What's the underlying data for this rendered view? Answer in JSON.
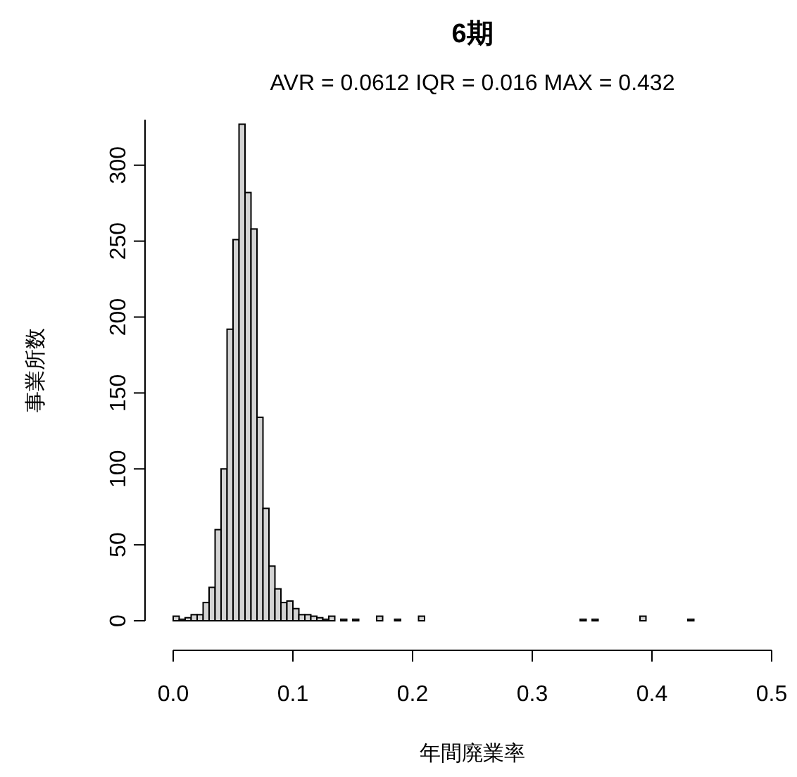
{
  "chart_data": {
    "type": "histogram",
    "title": "6期",
    "subtitle": "AVR = 0.0612  IQR = 0.016  MAX = 0.432",
    "xlabel": "年間廃業率",
    "ylabel": "事業所数",
    "bins": [
      0,
      0.005,
      0.01,
      0.015,
      0.02,
      0.025,
      0.03,
      0.035,
      0.04,
      0.045,
      0.05,
      0.055,
      0.06,
      0.065,
      0.07,
      0.075,
      0.08,
      0.085,
      0.09,
      0.095,
      0.1,
      0.105,
      0.11,
      0.115,
      0.12,
      0.125,
      0.13,
      0.135,
      0.14,
      0.145,
      0.15,
      0.155,
      0.16,
      0.165,
      0.17,
      0.175,
      0.18,
      0.185,
      0.19,
      0.195,
      0.2,
      0.205,
      0.21,
      0.215,
      0.22,
      0.225,
      0.23,
      0.235,
      0.24,
      0.245,
      0.25,
      0.255,
      0.26,
      0.265,
      0.27,
      0.275,
      0.28,
      0.285,
      0.29,
      0.295,
      0.3,
      0.305,
      0.31,
      0.315,
      0.32,
      0.325,
      0.33,
      0.335,
      0.34,
      0.345,
      0.35,
      0.355,
      0.36,
      0.365,
      0.37,
      0.375,
      0.38,
      0.385,
      0.39,
      0.395,
      0.4,
      0.405,
      0.41,
      0.415,
      0.42,
      0.425,
      0.43,
      0.435,
      0.44,
      0.445,
      0.45,
      0.455,
      0.46,
      0.465,
      0.47,
      0.475,
      0.48,
      0.485,
      0.49,
      0.495,
      0.5
    ],
    "values": [
      3,
      1,
      2,
      4,
      4,
      12,
      22,
      60,
      100,
      192,
      251,
      327,
      282,
      258,
      134,
      74,
      36,
      21,
      12,
      13,
      8,
      4,
      4,
      3,
      2,
      1,
      3,
      0,
      1,
      0,
      1,
      0,
      0,
      0,
      3,
      0,
      0,
      1,
      0,
      0,
      0,
      3,
      0,
      0,
      0,
      0,
      0,
      0,
      0,
      0,
      0,
      0,
      0,
      0,
      0,
      0,
      0,
      0,
      0,
      0,
      0,
      0,
      0,
      0,
      0,
      0,
      0,
      0,
      1,
      0,
      1,
      0,
      0,
      0,
      0,
      0,
      0,
      0,
      3,
      0,
      0,
      0,
      0,
      0,
      0,
      0,
      1,
      0,
      0,
      0,
      0,
      0,
      0,
      0,
      0,
      0,
      0,
      0,
      0,
      0
    ],
    "color": "#d3d3d3",
    "xlim": [
      0,
      0.5
    ],
    "xticks": [
      {
        "value": 0,
        "label": "0.0"
      },
      0.1,
      0.2,
      0.3,
      0.4,
      0.5
    ],
    "ylim": [
      0,
      330
    ],
    "yticks": [
      0,
      50,
      100,
      150,
      200,
      250,
      300
    ],
    "grid": false
  }
}
